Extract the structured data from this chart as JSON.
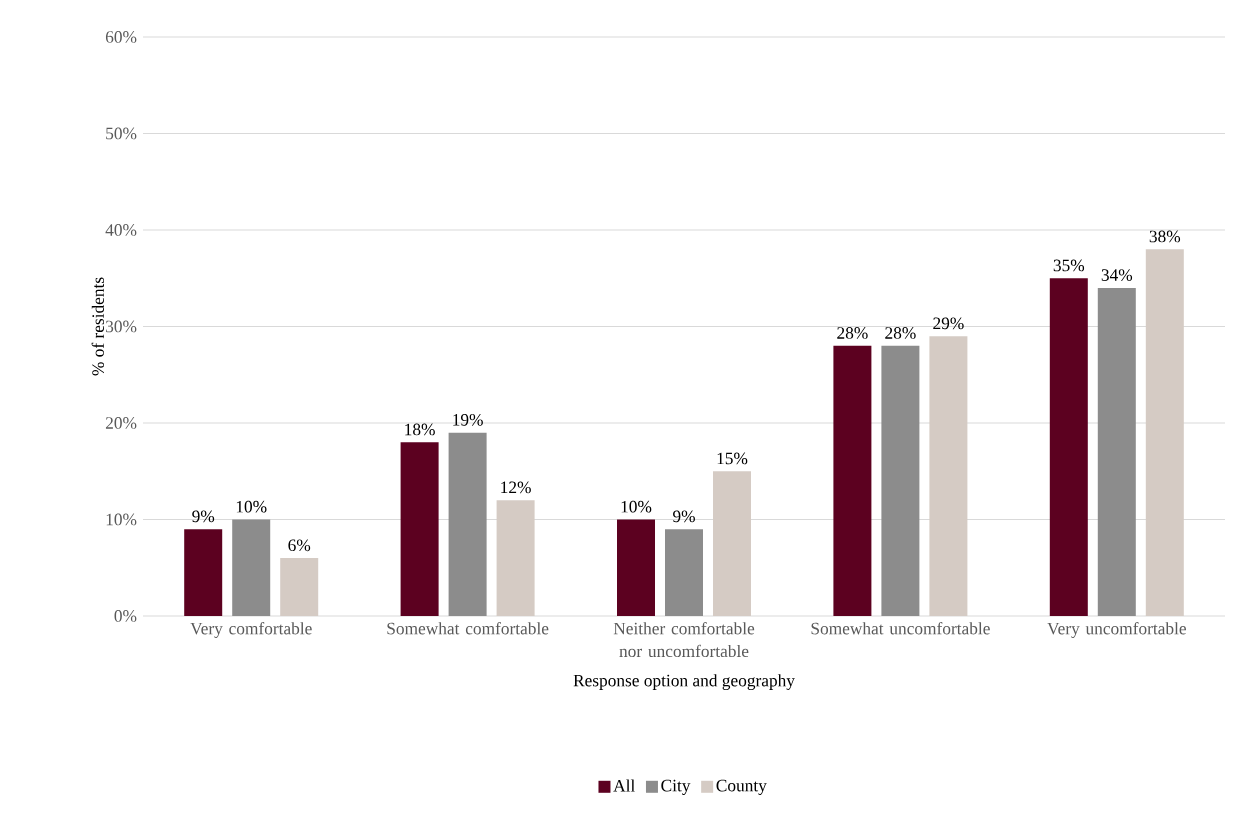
{
  "chart_data": {
    "type": "bar",
    "xlabel": "Response option and geography",
    "ylabel": "% of residents",
    "categories": [
      "Very comfortable",
      "Somewhat comfortable",
      "Neither comfortable nor uncomfortable",
      "Somewhat uncomfortable",
      "Very uncomfortable"
    ],
    "series": [
      {
        "name": "All",
        "color": "#5c0120",
        "values": [
          9,
          18,
          10,
          28,
          35
        ],
        "value_labels": [
          "9%",
          "18%",
          "10%",
          "28%",
          "35%"
        ]
      },
      {
        "name": "City",
        "color": "#8c8c8c",
        "values": [
          10,
          19,
          9,
          28,
          34
        ],
        "value_labels": [
          "10%",
          "19%",
          "9%",
          "28%",
          "34%"
        ]
      },
      {
        "name": "County",
        "color": "#d5cbc4",
        "values": [
          6,
          12,
          15,
          29,
          38
        ],
        "value_labels": [
          "6%",
          "12%",
          "15%",
          "29%",
          "38%"
        ]
      }
    ],
    "ylim": [
      0,
      60
    ],
    "yticks": [
      {
        "value": 0,
        "label": "0%"
      },
      {
        "value": 10,
        "label": "10%"
      },
      {
        "value": 20,
        "label": "20%"
      },
      {
        "value": 30,
        "label": "30%"
      },
      {
        "value": 40,
        "label": "40%"
      },
      {
        "value": 50,
        "label": "50%"
      },
      {
        "value": 60,
        "label": "60%"
      }
    ],
    "grid": "y",
    "legend": "bottom"
  }
}
